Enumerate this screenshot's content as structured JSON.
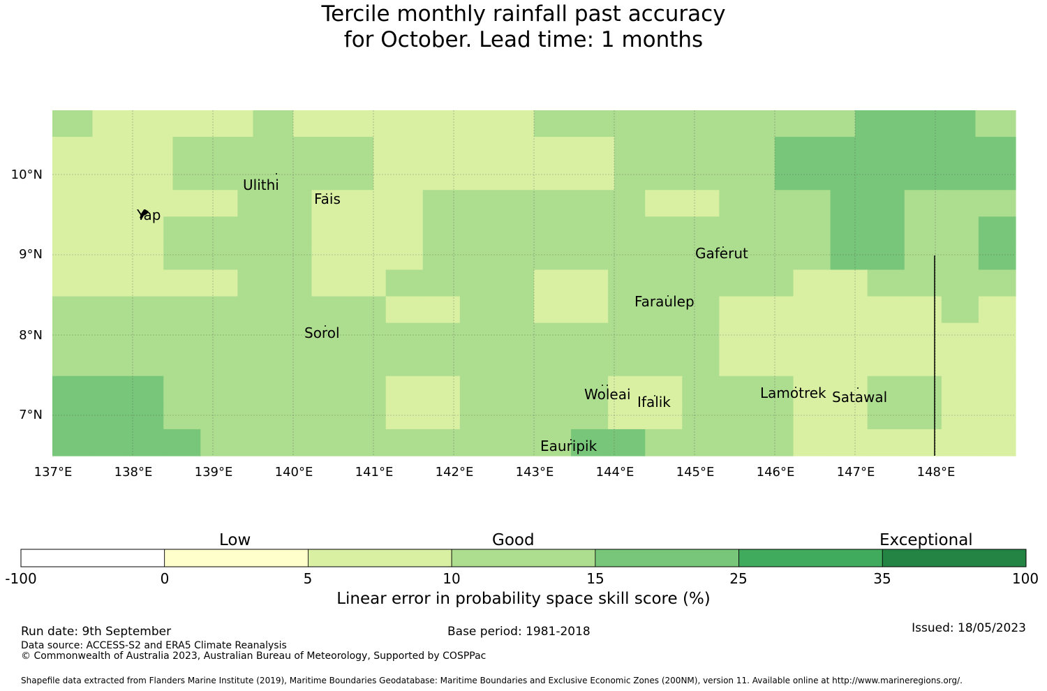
{
  "title": {
    "line1": "Tercile monthly rainfall past accuracy",
    "line2": "for October. Lead time: 1 months"
  },
  "map": {
    "lat_ticks": [
      "10°N",
      "9°N",
      "8°N",
      "7°N"
    ],
    "lon_ticks": [
      "137°E",
      "138°E",
      "139°E",
      "140°E",
      "141°E",
      "142°E",
      "143°E",
      "144°E",
      "145°E",
      "146°E",
      "147°E",
      "148°E"
    ],
    "places": [
      "Yap",
      "Ulithi",
      "Fais",
      "Sorol",
      "Gaferut",
      "Faraulep",
      "Woleai",
      "Ifalik",
      "Lamotrek",
      "Satawal",
      "Eauripik"
    ],
    "colors": {
      "c_0_5": "#ffffcc",
      "c_5_10": "#d9f0a3",
      "c_10_15": "#addd8e",
      "c_15_25": "#78c679",
      "c_25_35": "#41ab5d",
      "c_35_100": "#238443"
    },
    "grid": [
      [
        "c2",
        "c1",
        "c1",
        "c1",
        "c1",
        "c2",
        "c1",
        "c1",
        "c1",
        "c1",
        "c1",
        "c1",
        "c2",
        "c2",
        "c2",
        "c2",
        "c2",
        "c2",
        "c2",
        "c2",
        "c3",
        "c3",
        "c3",
        "c2"
      ],
      [
        "c1",
        "c1",
        "c1",
        "c2",
        "c2",
        "c2",
        "c2",
        "c2",
        "c1",
        "c1",
        "c1",
        "c1",
        "c1",
        "c1",
        "c2",
        "c2",
        "c2",
        "c2",
        "c3",
        "c3",
        "c3",
        "c3",
        "c3",
        "c3"
      ],
      [
        "c1",
        "c1",
        "c1",
        "c2",
        "c2",
        "c2",
        "c2",
        "c2",
        "c1",
        "c1",
        "c1",
        "c1",
        "c1",
        "c1",
        "c2",
        "c2",
        "c2",
        "c2",
        "c3",
        "c3",
        "c3",
        "c3",
        "c3",
        "c3"
      ],
      [
        "c1",
        "c1",
        "c1",
        "c1",
        "c1",
        "c2",
        "c2",
        "c1",
        "c1",
        "c1",
        "c2",
        "c2",
        "c2",
        "c2",
        "c2",
        "c2",
        "c1",
        "c1",
        "c2",
        "c2",
        "c2",
        "c3",
        "c3",
        "c2",
        "c2",
        "c2"
      ],
      [
        "c1",
        "c1",
        "c1",
        "c2",
        "c2",
        "c2",
        "c2",
        "c1",
        "c1",
        "c1",
        "c2",
        "c2",
        "c2",
        "c2",
        "c2",
        "c2",
        "c2",
        "c2",
        "c2",
        "c2",
        "c2",
        "c3",
        "c3",
        "c2",
        "c2",
        "c3"
      ],
      [
        "c1",
        "c1",
        "c1",
        "c2",
        "c2",
        "c2",
        "c2",
        "c1",
        "c1",
        "c1",
        "c2",
        "c2",
        "c2",
        "c2",
        "c2",
        "c2",
        "c2",
        "c2",
        "c2",
        "c2",
        "c2",
        "c3",
        "c3",
        "c2",
        "c2",
        "c3"
      ],
      [
        "c1",
        "c1",
        "c1",
        "c1",
        "c1",
        "c2",
        "c2",
        "c1",
        "c1",
        "c2",
        "c2",
        "c2",
        "c2",
        "c1",
        "c1",
        "c2",
        "c2",
        "c2",
        "c2",
        "c2",
        "c1",
        "c1",
        "c2",
        "c2",
        "c2",
        "c2"
      ],
      [
        "c2",
        "c2",
        "c2",
        "c2",
        "c2",
        "c2",
        "c2",
        "c2",
        "c2",
        "c1",
        "c1",
        "c2",
        "c2",
        "c1",
        "c1",
        "c2",
        "c2",
        "c2",
        "c1",
        "c1",
        "c1",
        "c1",
        "c1",
        "c1",
        "c2",
        "c1"
      ],
      [
        "c2",
        "c2",
        "c2",
        "c2",
        "c2",
        "c2",
        "c2",
        "c2",
        "c2",
        "c2",
        "c2",
        "c2",
        "c2",
        "c2",
        "c2",
        "c2",
        "c2",
        "c2",
        "c1",
        "c1",
        "c1",
        "c1",
        "c1",
        "c1",
        "c1",
        "c1"
      ],
      [
        "c2",
        "c2",
        "c2",
        "c2",
        "c2",
        "c2",
        "c2",
        "c2",
        "c2",
        "c2",
        "c2",
        "c2",
        "c2",
        "c2",
        "c2",
        "c2",
        "c2",
        "c2",
        "c1",
        "c1",
        "c1",
        "c1",
        "c1",
        "c1",
        "c1",
        "c1"
      ],
      [
        "c3",
        "c3",
        "c3",
        "c2",
        "c2",
        "c2",
        "c2",
        "c2",
        "c2",
        "c1",
        "c1",
        "c2",
        "c2",
        "c2",
        "c2",
        "c1",
        "c1",
        "c2",
        "c2",
        "c2",
        "c1",
        "c1",
        "c2",
        "c2",
        "c1",
        "c1"
      ],
      [
        "c3",
        "c3",
        "c3",
        "c2",
        "c2",
        "c2",
        "c2",
        "c2",
        "c2",
        "c1",
        "c1",
        "c2",
        "c2",
        "c2",
        "c2",
        "c1",
        "c1",
        "c2",
        "c2",
        "c2",
        "c1",
        "c1",
        "c2",
        "c2",
        "c1",
        "c1"
      ],
      [
        "c3",
        "c3",
        "c3",
        "c3",
        "c2",
        "c2",
        "c2",
        "c2",
        "c2",
        "c2",
        "c2",
        "c2",
        "c2",
        "c2",
        "c3",
        "c3",
        "c2",
        "c2",
        "c2",
        "c2",
        "c1",
        "c1",
        "c1",
        "c1",
        "c1",
        "c1"
      ]
    ]
  },
  "colorbar": {
    "categories": [
      "Low",
      "Good",
      "Exceptional"
    ],
    "ticks": [
      "-100",
      "0",
      "5",
      "10",
      "15",
      "25",
      "35",
      "100"
    ],
    "colors": [
      "#ffffff",
      "#ffffcc",
      "#d9f0a3",
      "#addd8e",
      "#78c679",
      "#41ab5d",
      "#238443"
    ],
    "label": "Linear error in probability space skill score (%)"
  },
  "footer": {
    "run_date": "Run date: 9th September",
    "base_period": "Base period: 1981-2018",
    "issued": "Issued: 18/05/2023",
    "data_source": "Data source: ACCESS-S2 and ERA5 Climate Reanalysis",
    "copyright": "© Commonwealth of Australia 2023, Australian Bureau of Meteorology, Supported by COSPPac",
    "shapefile": "Shapefile data extracted from Flanders Marine Institute (2019), Maritime Boundaries Geodatabase: Maritime Boundaries and Exclusive Economic Zones (200NM), version 11. Available online at http://www.marineregions.org/."
  }
}
